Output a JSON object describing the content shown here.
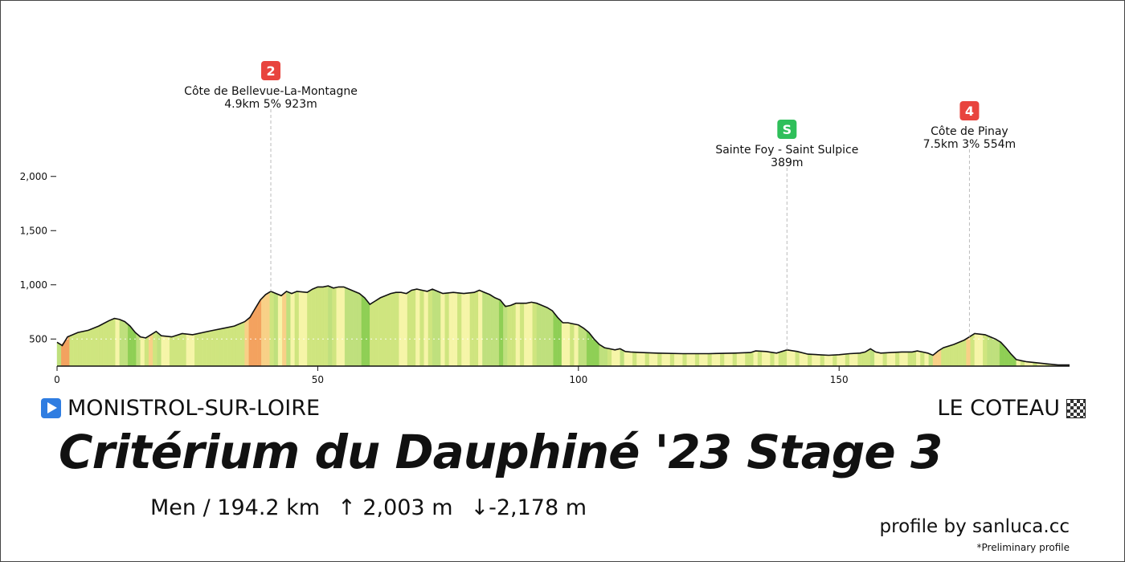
{
  "chart_data": {
    "type": "elevation-profile",
    "title": "Critérium du Dauphiné '23 Stage 3",
    "xlim": [
      0,
      194.2
    ],
    "ylim": [
      250,
      2100
    ],
    "x_ticks": [
      0,
      50,
      100,
      150
    ],
    "y_ticks": [
      {
        "value": 500,
        "label": "500"
      },
      {
        "value": 1000,
        "label": "1,000"
      },
      {
        "value": 1500,
        "label": "1,500"
      },
      {
        "value": 2000,
        "label": "2,000"
      }
    ],
    "profile": [
      [
        0,
        470
      ],
      [
        1,
        440
      ],
      [
        2,
        520
      ],
      [
        4,
        560
      ],
      [
        6,
        580
      ],
      [
        8,
        620
      ],
      [
        10,
        670
      ],
      [
        11,
        690
      ],
      [
        12,
        680
      ],
      [
        13,
        660
      ],
      [
        14,
        620
      ],
      [
        15,
        560
      ],
      [
        16,
        520
      ],
      [
        17,
        510
      ],
      [
        18,
        540
      ],
      [
        19,
        570
      ],
      [
        20,
        530
      ],
      [
        22,
        520
      ],
      [
        24,
        550
      ],
      [
        26,
        540
      ],
      [
        28,
        560
      ],
      [
        30,
        580
      ],
      [
        32,
        600
      ],
      [
        34,
        620
      ],
      [
        36,
        660
      ],
      [
        37,
        700
      ],
      [
        38,
        780
      ],
      [
        39,
        860
      ],
      [
        40,
        910
      ],
      [
        41,
        940
      ],
      [
        42,
        920
      ],
      [
        43,
        900
      ],
      [
        44,
        940
      ],
      [
        45,
        920
      ],
      [
        46,
        940
      ],
      [
        48,
        930
      ],
      [
        49,
        960
      ],
      [
        50,
        980
      ],
      [
        51,
        980
      ],
      [
        52,
        990
      ],
      [
        53,
        970
      ],
      [
        54,
        980
      ],
      [
        55,
        980
      ],
      [
        56,
        960
      ],
      [
        57,
        940
      ],
      [
        58,
        920
      ],
      [
        59,
        880
      ],
      [
        60,
        820
      ],
      [
        61,
        850
      ],
      [
        62,
        880
      ],
      [
        63,
        900
      ],
      [
        64,
        920
      ],
      [
        65,
        930
      ],
      [
        66,
        930
      ],
      [
        67,
        920
      ],
      [
        68,
        950
      ],
      [
        69,
        960
      ],
      [
        70,
        950
      ],
      [
        71,
        940
      ],
      [
        72,
        960
      ],
      [
        73,
        940
      ],
      [
        74,
        920
      ],
      [
        76,
        930
      ],
      [
        78,
        920
      ],
      [
        80,
        930
      ],
      [
        81,
        950
      ],
      [
        82,
        930
      ],
      [
        83,
        910
      ],
      [
        84,
        880
      ],
      [
        85,
        860
      ],
      [
        86,
        800
      ],
      [
        87,
        810
      ],
      [
        88,
        830
      ],
      [
        90,
        830
      ],
      [
        91,
        840
      ],
      [
        92,
        830
      ],
      [
        93,
        810
      ],
      [
        94,
        790
      ],
      [
        95,
        760
      ],
      [
        96,
        700
      ],
      [
        97,
        650
      ],
      [
        98,
        650
      ],
      [
        99,
        640
      ],
      [
        100,
        630
      ],
      [
        101,
        600
      ],
      [
        102,
        560
      ],
      [
        103,
        500
      ],
      [
        104,
        450
      ],
      [
        105,
        420
      ],
      [
        106,
        410
      ],
      [
        107,
        400
      ],
      [
        108,
        410
      ],
      [
        109,
        385
      ],
      [
        110,
        380
      ],
      [
        112,
        375
      ],
      [
        115,
        370
      ],
      [
        120,
        365
      ],
      [
        125,
        365
      ],
      [
        130,
        370
      ],
      [
        133,
        375
      ],
      [
        134,
        390
      ],
      [
        136,
        385
      ],
      [
        138,
        370
      ],
      [
        140,
        400
      ],
      [
        142,
        385
      ],
      [
        144,
        360
      ],
      [
        146,
        355
      ],
      [
        148,
        350
      ],
      [
        150,
        355
      ],
      [
        152,
        365
      ],
      [
        154,
        370
      ],
      [
        155,
        380
      ],
      [
        156,
        410
      ],
      [
        157,
        380
      ],
      [
        158,
        370
      ],
      [
        160,
        375
      ],
      [
        162,
        380
      ],
      [
        164,
        380
      ],
      [
        165,
        390
      ],
      [
        166,
        380
      ],
      [
        167,
        370
      ],
      [
        168,
        350
      ],
      [
        169,
        390
      ],
      [
        170,
        420
      ],
      [
        172,
        450
      ],
      [
        174,
        490
      ],
      [
        175,
        520
      ],
      [
        176,
        550
      ],
      [
        178,
        540
      ],
      [
        179,
        520
      ],
      [
        180,
        500
      ],
      [
        181,
        470
      ],
      [
        182,
        420
      ],
      [
        183,
        360
      ],
      [
        184,
        310
      ],
      [
        185,
        300
      ],
      [
        186,
        290
      ],
      [
        188,
        280
      ],
      [
        190,
        270
      ],
      [
        192,
        260
      ],
      [
        194.2,
        260
      ]
    ],
    "climbs": [
      {
        "badge": "2",
        "badge_color": "#e8443e",
        "km": 41,
        "name": "Côte de Bellevue-La-Montagne",
        "stats": "4.9km 5% 923m"
      },
      {
        "badge": "S",
        "badge_color": "#2fbf5a",
        "km": 140,
        "name": "Sainte Foy - Saint Sulpice",
        "stats": "389m"
      },
      {
        "badge": "4",
        "badge_color": "#e8443e",
        "km": 175,
        "name": "Côte de Pinay",
        "stats": "7.5km 3% 554m"
      }
    ]
  },
  "start_label": "MONISTROL-SUR-LOIRE",
  "finish_label": "LE COTEAU",
  "title": "Critérium du Dauphiné '23 Stage 3",
  "stats": {
    "category": "Men / 194.2 km",
    "ascent": "↑ 2,003 m",
    "descent": "↓-2,178 m"
  },
  "credit": "profile by sanluca.cc",
  "note": "*Preliminary profile",
  "colors": {
    "flat": "#f6f5a8",
    "gentle": "#cfe57f",
    "moderate": "#f8d087",
    "steep": "#f3a25f",
    "very_steep": "#ee7a3d",
    "descent_light": "#bfe07d",
    "descent_strong": "#8fcf55",
    "outline": "#111111",
    "start_icon": "#2f7de1"
  }
}
